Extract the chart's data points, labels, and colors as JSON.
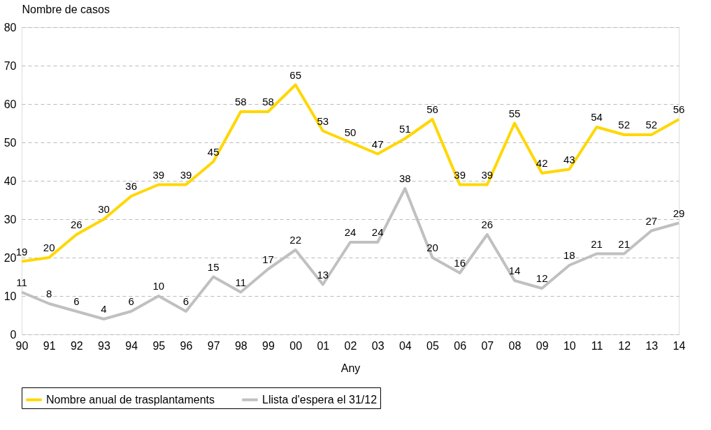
{
  "chart_data": {
    "type": "line",
    "xlabel": "Any",
    "ylabel": "Nombre de casos",
    "categories": [
      "90",
      "91",
      "92",
      "93",
      "94",
      "95",
      "96",
      "97",
      "98",
      "99",
      "00",
      "01",
      "02",
      "03",
      "04",
      "05",
      "06",
      "07",
      "08",
      "09",
      "10",
      "11",
      "12",
      "13",
      "14"
    ],
    "series": [
      {
        "name": "Nombre anual de trasplantaments",
        "color": "#ffd700",
        "values": [
          19,
          20,
          26,
          30,
          36,
          39,
          39,
          45,
          58,
          58,
          65,
          53,
          50,
          47,
          51,
          56,
          39,
          39,
          55,
          42,
          43,
          54,
          52,
          52,
          56
        ]
      },
      {
        "name": "Llista d'espera el 31/12",
        "color": "#c0c0c0",
        "values": [
          11,
          8,
          6,
          4,
          6,
          10,
          6,
          15,
          11,
          17,
          22,
          13,
          24,
          24,
          38,
          20,
          16,
          26,
          14,
          12,
          18,
          21,
          21,
          27,
          29
        ]
      }
    ],
    "ylim": [
      0,
      80
    ],
    "yticks": [
      0,
      10,
      20,
      30,
      40,
      50,
      60,
      70,
      80
    ],
    "grid": "y",
    "legend": "bottom",
    "data_labels": true,
    "line_style": "solid",
    "marker": "none"
  }
}
